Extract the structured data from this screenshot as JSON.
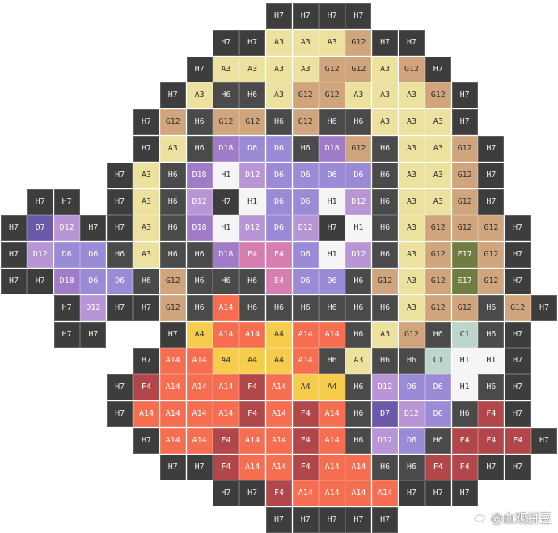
{
  "palette": {
    "H7": {
      "bg": "#3d3d3d",
      "fg": "#e8e8e8"
    },
    "H6": {
      "bg": "#4a4a4a",
      "fg": "#e8e8e8"
    },
    "A3": {
      "bg": "#ede1a0",
      "fg": "#333333"
    },
    "G12": {
      "bg": "#d0a47c",
      "fg": "#333333"
    },
    "D18": {
      "bg": "#a07cc8",
      "fg": "#ffffff"
    },
    "D6": {
      "bg": "#9b8bd6",
      "fg": "#ffffff"
    },
    "D12": {
      "bg": "#b896d6",
      "fg": "#ffffff"
    },
    "D7": {
      "bg": "#6a58a8",
      "fg": "#ffffff"
    },
    "H1": {
      "bg": "#f5f5f5",
      "fg": "#333333"
    },
    "E4": {
      "bg": "#d77eb0",
      "fg": "#ffffff"
    },
    "E17": {
      "bg": "#6f7c43",
      "fg": "#ffffff"
    },
    "A14": {
      "bg": "#f56e52",
      "fg": "#ffffff"
    },
    "A4": {
      "bg": "#f6cc4c",
      "fg": "#333333"
    },
    "F4": {
      "bg": "#b2474b",
      "fg": "#ffffff"
    },
    "C1": {
      "bg": "#bcd6cc",
      "fg": "#333333"
    }
  },
  "rows": [
    {
      "row": 0,
      "start": 10,
      "codes": [
        "H7",
        "H7",
        "H7",
        "H7"
      ]
    },
    {
      "row": 1,
      "start": 8,
      "codes": [
        "H7",
        "H7",
        "A3",
        "A3",
        "A3",
        "G12",
        "H7",
        "H7"
      ]
    },
    {
      "row": 2,
      "start": 7,
      "codes": [
        "H7",
        "A3",
        "A3",
        "A3",
        "A3",
        "G12",
        "G12",
        "A3",
        "G12",
        "H7"
      ]
    },
    {
      "row": 3,
      "start": 6,
      "codes": [
        "H7",
        "A3",
        "H6",
        "H6",
        "A3",
        "G12",
        "G12",
        "A3",
        "A3",
        "A3",
        "G12",
        "H7"
      ]
    },
    {
      "row": 4,
      "start": 5,
      "codes": [
        "H7",
        "G12",
        "H6",
        "G12",
        "G12",
        "H6",
        "G12",
        "H6",
        "H6",
        "A3",
        "A3",
        "A3",
        "H7"
      ]
    },
    {
      "row": 5,
      "start": 5,
      "codes": [
        "H7",
        "A3",
        "H6",
        "D18",
        "D6",
        "D6",
        "H6",
        "D18",
        "G12",
        "H6",
        "A3",
        "A3",
        "G12",
        "H7"
      ]
    },
    {
      "row": 6,
      "start": 4,
      "codes": [
        "H7",
        "A3",
        "H6",
        "D18",
        "H1",
        "D12",
        "D6",
        "D6",
        "D6",
        "D6",
        "H6",
        "A3",
        "A3",
        "G12",
        "H7"
      ]
    },
    {
      "row": 7,
      "start": 1,
      "codes": [
        "H7",
        "H7",
        null,
        "H7",
        "A3",
        "H6",
        "D12",
        "H7",
        "H1",
        "D6",
        "D6",
        "H1",
        "D12",
        "H6",
        "A3",
        "A3",
        "G12",
        "H7"
      ]
    },
    {
      "row": 8,
      "start": 0,
      "codes": [
        "H7",
        "D7",
        "D12",
        "H7",
        "H7",
        "A3",
        "H6",
        "D18",
        "H1",
        "D12",
        "D6",
        "D12",
        "H7",
        "H1",
        "H6",
        "A3",
        "G12",
        "G12",
        "G12",
        "H7"
      ]
    },
    {
      "row": 9,
      "start": 0,
      "codes": [
        "H7",
        "D12",
        "D6",
        "D6",
        "H6",
        "A3",
        "H6",
        "H6",
        "D18",
        "E4",
        "E4",
        "D6",
        "H1",
        "D12",
        "H6",
        "A3",
        "G12",
        "E17",
        "G12",
        "H7"
      ]
    },
    {
      "row": 10,
      "start": 0,
      "codes": [
        "H7",
        "H7",
        "D18",
        "D6",
        "D6",
        "H6",
        "G12",
        "H6",
        "H6",
        "H6",
        "E4",
        "D6",
        "D6",
        "H6",
        "G12",
        "A3",
        "G12",
        "E17",
        "G12",
        "H7"
      ]
    },
    {
      "row": 11,
      "start": 2,
      "codes": [
        "H7",
        "D12",
        "H7",
        "H7",
        "G12",
        "H6",
        "A14",
        "H6",
        "H6",
        "H6",
        "H6",
        "H6",
        "H6",
        "A3",
        "G12",
        "G12",
        "H6",
        "G12",
        "H7"
      ]
    },
    {
      "row": 12,
      "start": 2,
      "codes": [
        "H7",
        "H7",
        null,
        null,
        "H7",
        "A4",
        "A14",
        "A14",
        "A4",
        "A14",
        "A14",
        "H6",
        "A3",
        "G12",
        "H6",
        "C1",
        "H6",
        "H7"
      ]
    },
    {
      "row": 13,
      "start": 5,
      "codes": [
        "H7",
        "A14",
        "A14",
        "A4",
        "A4",
        "A4",
        "A14",
        "H6",
        "A3",
        "H6",
        "H6",
        "C1",
        "H1",
        "H1",
        "H7"
      ]
    },
    {
      "row": 14,
      "start": 4,
      "codes": [
        "H7",
        "F4",
        "A14",
        "A14",
        "A14",
        "F4",
        "A14",
        "A4",
        "A4",
        "H6",
        "D12",
        "D6",
        "D6",
        "H1",
        "H6",
        "H7"
      ]
    },
    {
      "row": 15,
      "start": 4,
      "codes": [
        "H7",
        "A14",
        "A14",
        "A14",
        "A14",
        "F4",
        "A14",
        "F4",
        "A14",
        "H6",
        "D7",
        "D12",
        "D6",
        "H6",
        "F4",
        "H7"
      ]
    },
    {
      "row": 16,
      "start": 5,
      "codes": [
        "H7",
        "A14",
        "A14",
        "F4",
        "A14",
        "A14",
        "F4",
        "A14",
        "H6",
        "D12",
        "D6",
        "H6",
        "F4",
        "F4",
        "F4",
        "H7"
      ]
    },
    {
      "row": 17,
      "start": 6,
      "codes": [
        "H7",
        "H7",
        "F4",
        "A14",
        "A14",
        "F4",
        "A14",
        "A14",
        "H6",
        "H6",
        "F4",
        "F4",
        "H7",
        "H7"
      ]
    },
    {
      "row": 18,
      "start": 8,
      "codes": [
        "H7",
        "H7",
        "F4",
        "A14",
        "A14",
        "A14",
        "A14",
        "H7",
        "H7",
        "H7"
      ]
    },
    {
      "row": 19,
      "start": 10,
      "codes": [
        "H7",
        "H7",
        "H7",
        "H7",
        "H7"
      ]
    }
  ],
  "watermark": {
    "text": "@血观拼豆"
  }
}
